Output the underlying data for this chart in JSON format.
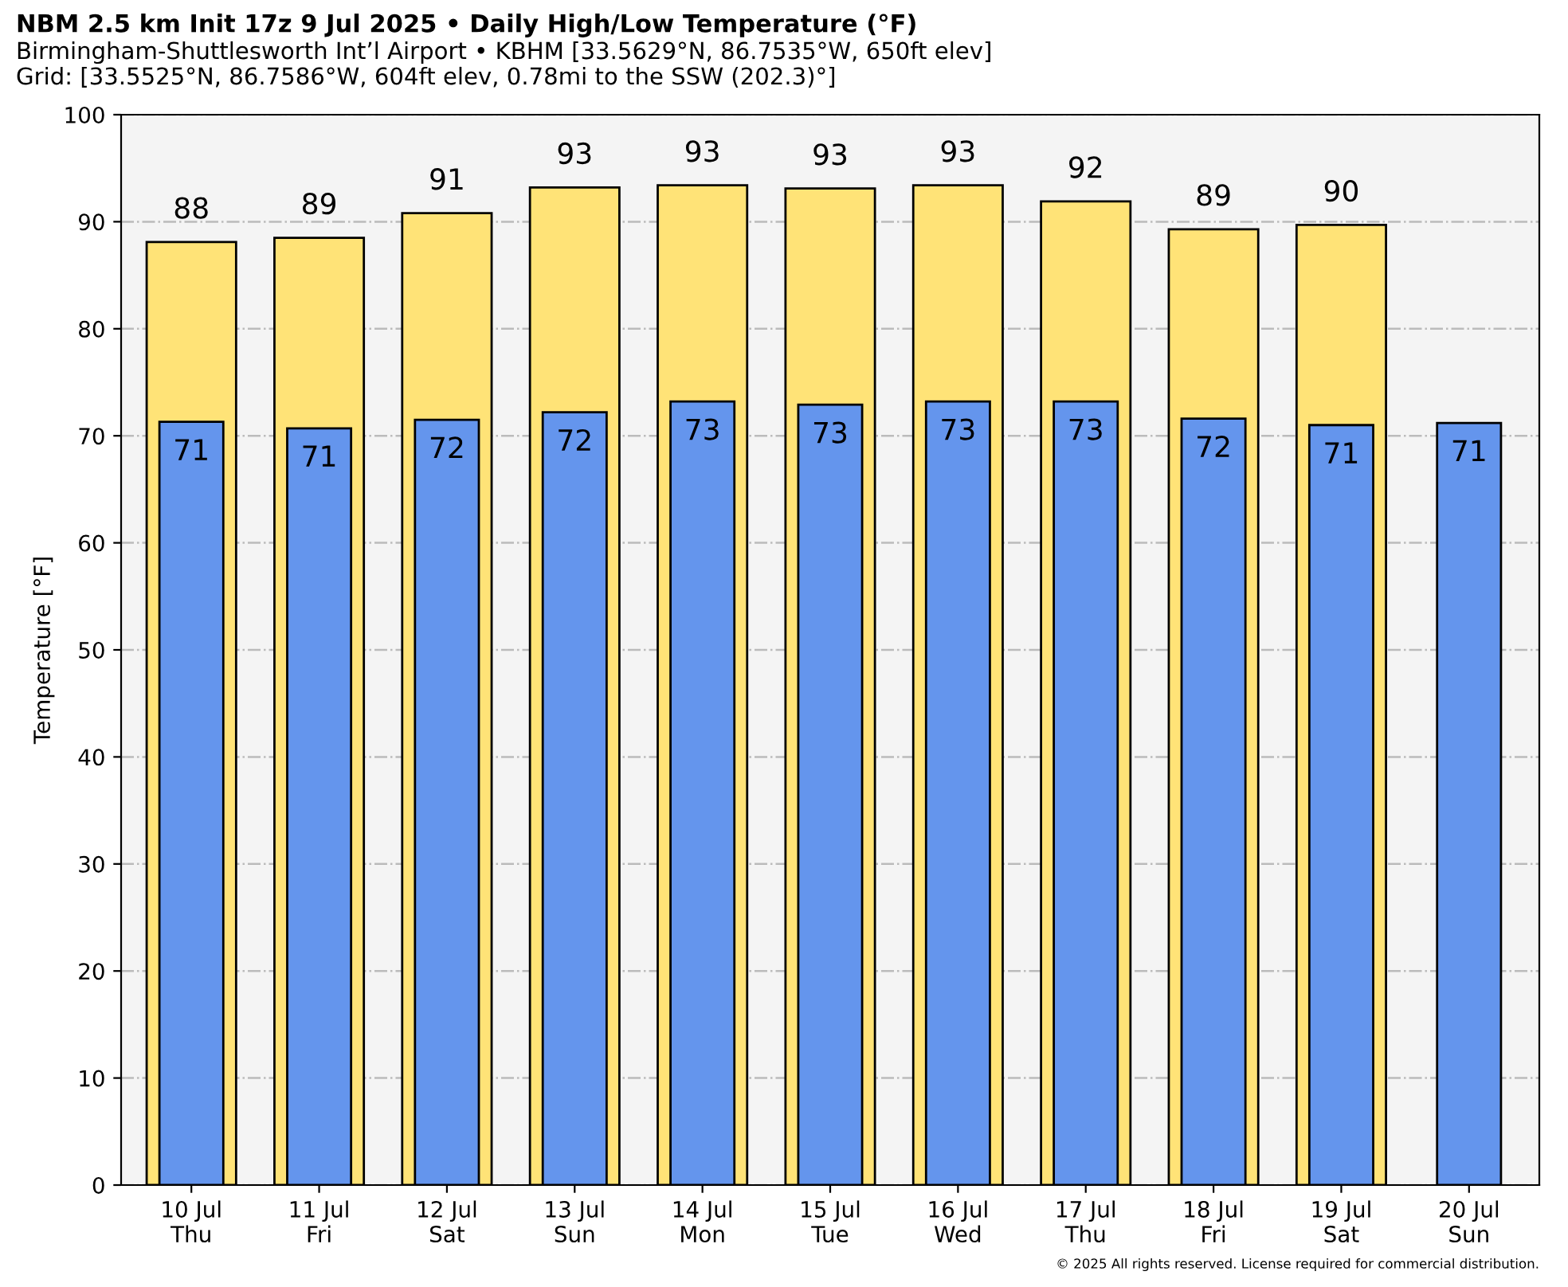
{
  "chart_data": {
    "type": "bar",
    "title": "NBM 2.5 km Init 17z 9 Jul 2025 • Daily High/Low Temperature (°F)",
    "subtitle": "Birmingham-Shuttlesworth Int’l Airport • KBHM [33.5629°N, 86.7535°W, 650ft elev]\nGrid: [33.5525°N, 86.7586°W, 604ft elev, 0.78mi to the SSW (202.3)°]",
    "ylabel": "Temperature [°F]",
    "categories": [
      "10 Jul\nThu",
      "11 Jul\nFri",
      "12 Jul\nSat",
      "13 Jul\nSun",
      "14 Jul\nMon",
      "15 Jul\nTue",
      "16 Jul\nWed",
      "17 Jul\nThu",
      "18 Jul\nFri",
      "19 Jul\nSat",
      "20 Jul\nSun"
    ],
    "series": [
      {
        "color": "#ffe377",
        "values": [
          88.1,
          88.5,
          90.8,
          93.2,
          93.4,
          93.1,
          93.4,
          91.9,
          89.3,
          89.7,
          null
        ],
        "value_labels": [
          "88",
          "89",
          "91",
          "93",
          "93",
          "93",
          "93",
          "92",
          "89",
          "90",
          null
        ]
      },
      {
        "color": "#6495ed",
        "values": [
          71.3,
          70.7,
          71.5,
          72.2,
          73.2,
          72.9,
          73.2,
          73.2,
          71.6,
          71.0,
          71.2
        ],
        "value_labels": [
          "71",
          "71",
          "72",
          "72",
          "73",
          "73",
          "73",
          "73",
          "72",
          "71",
          "71"
        ]
      }
    ],
    "ylim": [
      0,
      100
    ],
    "yticks": [
      0,
      10,
      20,
      30,
      40,
      50,
      60,
      70,
      80,
      90,
      100
    ],
    "grid": "y",
    "legend": false,
    "annotations": [
      "© 2025 All rights reserved. License required for commercial distribution."
    ]
  }
}
